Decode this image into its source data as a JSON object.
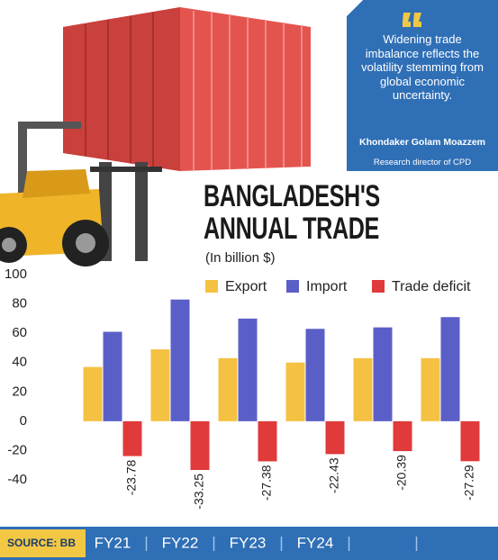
{
  "quote": {
    "text": "Widening trade imbalance reflects the volatility stemming from global economic uncertainty.",
    "author": "Khondaker Golam Moazzem",
    "role": "Research director of CPD"
  },
  "chart_data": {
    "type": "bar",
    "title": "BANGLADESH'S ANNUAL TRADE",
    "subtitle": "(In billion $)",
    "source": "SOURCE: BB",
    "categories": [
      "FY21",
      "FY22",
      "FY23",
      "FY24",
      null,
      null
    ],
    "series": [
      {
        "name": "Export",
        "color": "#f4c142",
        "values": [
          37,
          49,
          43,
          40,
          43,
          43
        ]
      },
      {
        "name": "Import",
        "color": "#5a5fc8",
        "values": [
          61,
          83,
          70,
          63,
          64,
          71
        ]
      },
      {
        "name": "Trade deficit",
        "color": "#e03a3a",
        "values": [
          -23.78,
          -33.25,
          -27.38,
          -22.43,
          -20.39,
          -27.29
        ]
      }
    ],
    "ylim": [
      -40,
      100
    ],
    "yticks": [
      -40,
      -20,
      0,
      20,
      40,
      60,
      80,
      100
    ],
    "grid": false
  }
}
